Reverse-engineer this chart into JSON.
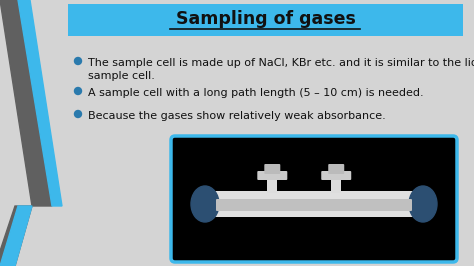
{
  "title": "Sampling of gases",
  "title_color": "#111111",
  "title_bg_color": "#3db8eb",
  "background_color": "#d4d4d4",
  "left_stripe_blue": "#3db8eb",
  "left_stripe_gray": "#606060",
  "bullets": [
    "The sample cell is made up of NaCl, KBr etc. and it is similar to the liquid\nsample cell.",
    "A sample cell with a long path length (5 – 10 cm) is needed.",
    "Because the gases show relatively weak absorbance."
  ],
  "bullet_dot_color": "#2a7aad",
  "bullet_color": "#111111",
  "bullet_fontsize": 8.0,
  "image_box_edge_color": "#3db8eb",
  "image_box_face_color": "#000000",
  "figsize": [
    4.74,
    2.66
  ],
  "dpi": 100
}
